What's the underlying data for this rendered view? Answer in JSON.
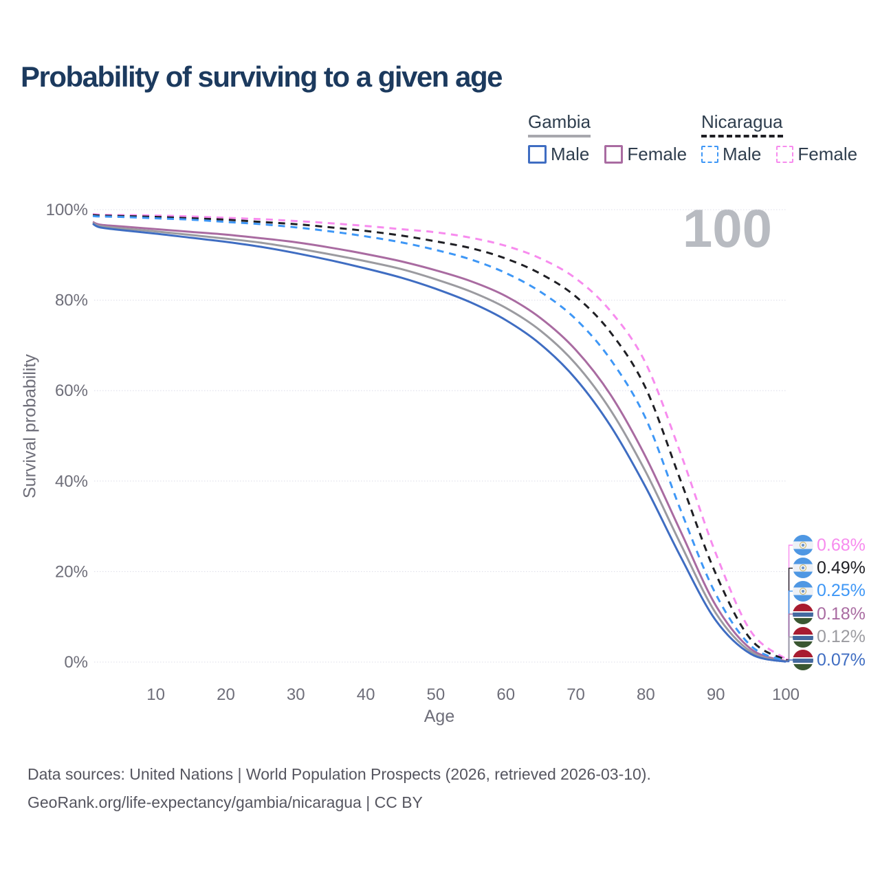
{
  "title": "Probability of surviving to a given age",
  "watermark_age": "100",
  "legend": {
    "groups": [
      {
        "label": "Gambia",
        "underline_style": "solid",
        "underline_color": "#a7a7ad",
        "items": [
          {
            "label": "Male",
            "color": "#3f6dc2",
            "line_style": "solid"
          },
          {
            "label": "Female",
            "color": "#a96ba1",
            "line_style": "solid"
          }
        ]
      },
      {
        "label": "Nicaragua",
        "underline_style": "dashed",
        "underline_color": "#1f1f24",
        "items": [
          {
            "label": "Male",
            "color": "#3e97f6",
            "line_style": "dashed"
          },
          {
            "label": "Female",
            "color": "#f78bee",
            "line_style": "dashed"
          }
        ]
      }
    ]
  },
  "chart_data": {
    "type": "line",
    "title": "Probability of surviving to a given age",
    "xlabel": "Age",
    "ylabel": "Survival probability",
    "xlim": [
      1,
      100
    ],
    "ylim": [
      0,
      100
    ],
    "grid": "horizontal-only",
    "x_ticks": [
      10,
      20,
      30,
      40,
      50,
      60,
      70,
      80,
      90,
      100
    ],
    "y_ticks": [
      {
        "value": 100,
        "label": "100%"
      },
      {
        "value": 80,
        "label": "80%"
      },
      {
        "value": 60,
        "label": "60%"
      },
      {
        "value": 40,
        "label": "40%"
      },
      {
        "value": 20,
        "label": "20%"
      },
      {
        "value": 0,
        "label": "0%"
      }
    ],
    "ages": [
      1,
      2,
      5,
      10,
      15,
      20,
      25,
      30,
      35,
      40,
      45,
      50,
      55,
      60,
      65,
      70,
      75,
      80,
      85,
      90,
      95,
      100
    ],
    "series": [
      {
        "name": "Nicaragua Female",
        "country": "Nicaragua",
        "flag": "nicaragua",
        "color": "#f78bee",
        "dash": true,
        "end_label": "0.68%",
        "values": [
          99.0,
          98.9,
          98.8,
          98.7,
          98.5,
          98.2,
          97.9,
          97.5,
          97.0,
          96.4,
          95.7,
          95.0,
          93.8,
          92.0,
          89.2,
          84.8,
          77.5,
          66.0,
          46.0,
          24.0,
          6.8,
          0.68
        ]
      },
      {
        "name": "Nicaragua",
        "country": "Nicaragua",
        "flag": "nicaragua",
        "color": "#1f1f24",
        "dash": true,
        "end_label": "0.49%",
        "values": [
          98.8,
          98.7,
          98.6,
          98.4,
          98.1,
          97.8,
          97.3,
          96.8,
          96.1,
          95.3,
          94.3,
          93.0,
          91.5,
          89.2,
          85.8,
          80.8,
          72.8,
          60.5,
          40.0,
          19.5,
          5.0,
          0.49
        ]
      },
      {
        "name": "Nicaragua Male",
        "country": "Nicaragua",
        "flag": "nicaragua",
        "color": "#3e97f6",
        "dash": true,
        "end_label": "0.25%",
        "values": [
          98.6,
          98.5,
          98.4,
          98.1,
          97.8,
          97.3,
          96.8,
          96.1,
          95.2,
          94.1,
          92.8,
          91.1,
          89.0,
          86.0,
          81.8,
          75.8,
          66.8,
          53.8,
          33.5,
          15.0,
          3.6,
          0.25
        ]
      },
      {
        "name": "Gambia Female",
        "country": "Gambia",
        "flag": "gambia",
        "color": "#a96ba1",
        "dash": false,
        "end_label": "0.18%",
        "values": [
          97.3,
          96.7,
          96.3,
          95.7,
          95.1,
          94.5,
          93.7,
          92.8,
          91.6,
          90.2,
          88.6,
          86.6,
          84.2,
          80.9,
          76.0,
          69.0,
          59.0,
          45.3,
          28.8,
          12.5,
          2.9,
          0.18
        ]
      },
      {
        "name": "Gambia",
        "country": "Gambia",
        "flag": "gambia",
        "color": "#9b9ba0",
        "dash": false,
        "end_label": "0.12%",
        "values": [
          97.1,
          96.4,
          95.9,
          95.2,
          94.4,
          93.6,
          92.7,
          91.5,
          90.1,
          88.6,
          86.9,
          84.6,
          81.9,
          78.3,
          73.2,
          65.9,
          55.6,
          42.0,
          26.0,
          10.8,
          2.3,
          0.12
        ]
      },
      {
        "name": "Gambia Male",
        "country": "Gambia",
        "flag": "gambia",
        "color": "#3f6dc2",
        "dash": false,
        "end_label": "0.07%",
        "values": [
          96.9,
          96.1,
          95.5,
          94.7,
          93.8,
          92.9,
          91.8,
          90.4,
          88.8,
          87.0,
          85.0,
          82.5,
          79.5,
          75.6,
          70.2,
          62.6,
          52.1,
          38.6,
          23.2,
          9.2,
          1.8,
          0.07
        ]
      }
    ]
  },
  "footer": {
    "line1": "Data sources: United Nations | World Population Prospects (2026, retrieved 2026-03-10).",
    "line2": "GeoRank.org/life-expectancy/gambia/nicaragua | CC BY"
  }
}
